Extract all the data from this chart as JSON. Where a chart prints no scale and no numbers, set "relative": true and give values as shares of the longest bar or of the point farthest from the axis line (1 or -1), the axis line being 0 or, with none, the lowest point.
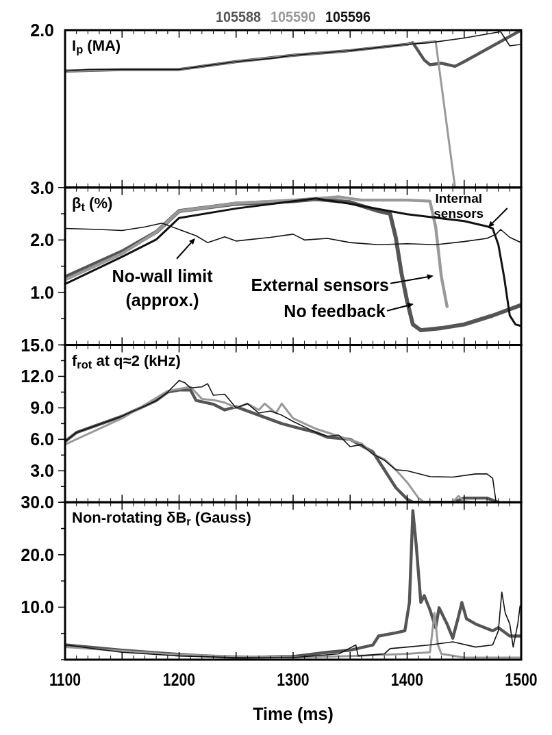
{
  "chart_data": [
    {
      "type": "line",
      "ylabel": "I$_{p}$ (MA)",
      "legend": "top",
      "tick_labels": "y",
      "xlim": [
        1100,
        1500
      ],
      "relative": true,
      "annotations": [
        "2.0"
      ],
      "xticks": [
        {
          "value": 1100,
          "label": null
        },
        {
          "value": 1150,
          "label": null
        },
        {
          "value": 1200,
          "label": null
        },
        {
          "value": 1250,
          "label": null
        },
        {
          "value": 1300,
          "label": null
        },
        {
          "value": 1350,
          "label": null
        },
        {
          "value": 1400,
          "label": null
        },
        {
          "value": 1450,
          "label": null
        },
        {
          "value": 1500,
          "label": null
        }
      ],
      "series": [
        {
          "name": "105588",
          "color": "#555555",
          "x": [
            1100,
            1150,
            1200,
            1250,
            1300,
            1350,
            1400,
            1405,
            1415,
            1420,
            1430,
            1442,
            1450,
            1500
          ],
          "values": [
            0.74,
            0.75,
            0.75,
            0.8,
            0.84,
            0.87,
            0.91,
            0.92,
            0.81,
            0.78,
            0.79,
            0.77,
            0.8,
            1
          ]
        },
        {
          "name": "105590",
          "color": "#999999",
          "x": [
            1100,
            1150,
            1200,
            1250,
            1300,
            1350,
            1400,
            1425,
            1442
          ],
          "values": [
            0.74,
            0.75,
            0.75,
            0.8,
            0.84,
            0.87,
            0.91,
            0.93,
            0
          ]
        },
        {
          "name": "105596",
          "color": "#111111",
          "x": [
            1100,
            1120,
            1140,
            1160,
            1180,
            1200,
            1220,
            1250,
            1280,
            1300,
            1350,
            1400,
            1420,
            1450,
            1482,
            1490,
            1500
          ],
          "values": [
            0.74,
            0.75,
            0.75,
            0.75,
            0.75,
            0.75,
            0.77,
            0.8,
            0.82,
            0.84,
            0.87,
            0.91,
            0.92,
            0.95,
            0.99,
            0.9,
            0.91
          ]
        }
      ]
    },
    {
      "type": "line",
      "ylabel": "β$_{t}$ (%)",
      "tick_labels": "y",
      "xlim": [
        1100,
        1500
      ],
      "ylim": [
        0,
        3
      ],
      "xticks": [
        {
          "value": 1100,
          "label": null
        },
        {
          "value": 1150,
          "label": null
        },
        {
          "value": 1200,
          "label": null
        },
        {
          "value": 1250,
          "label": null
        },
        {
          "value": 1300,
          "label": null
        },
        {
          "value": 1350,
          "label": null
        },
        {
          "value": 1400,
          "label": null
        },
        {
          "value": 1450,
          "label": null
        },
        {
          "value": 1500,
          "label": null
        }
      ],
      "yticks": [
        {
          "value": 0,
          "label": null
        },
        {
          "value": 0.5,
          "label": null
        },
        {
          "value": 1,
          "label": "1.0"
        },
        {
          "value": 1.5,
          "label": null
        },
        {
          "value": 2,
          "label": "2.0"
        },
        {
          "value": 2.5,
          "label": null
        },
        {
          "value": 3,
          "label": "3.0"
        }
      ],
      "annotations": [
        "No-wall limit\n(approx.)",
        {
          "text": "Internal\nsensors",
          "x": 1471,
          "y": 2.24
        },
        "External sensors",
        "No feedback"
      ],
      "series": [
        {
          "color": "#555555",
          "x": [
            1100,
            1150,
            1180,
            1200,
            1250,
            1300,
            1320,
            1350,
            1375,
            1385,
            1390,
            1395,
            1400,
            1405,
            1412,
            1430,
            1450,
            1475,
            1500
          ],
          "values": [
            1.29,
            1.78,
            2.15,
            2.55,
            2.69,
            2.74,
            2.78,
            2.72,
            2.55,
            2.5,
            2.05,
            1.37,
            0.83,
            0.39,
            0.28,
            0.32,
            0.39,
            0.56,
            0.76
          ]
        },
        {
          "color": "#999999",
          "x": [
            1100,
            1150,
            1180,
            1200,
            1250,
            1300,
            1340,
            1360,
            1400,
            1420,
            1425,
            1430,
            1435
          ],
          "values": [
            1.24,
            1.74,
            2.15,
            2.55,
            2.7,
            2.76,
            2.82,
            2.76,
            2.76,
            2.74,
            2.25,
            1.3,
            0.73
          ]
        },
        {
          "color": "#111111",
          "x": [
            1100,
            1150,
            1180,
            1200,
            1250,
            1300,
            1320,
            1350,
            1380,
            1400,
            1420,
            1450,
            1470,
            1475,
            1480,
            1485,
            1490,
            1495,
            1500
          ],
          "values": [
            1.16,
            1.68,
            2.01,
            2.42,
            2.6,
            2.74,
            2.79,
            2.69,
            2.57,
            2.49,
            2.44,
            2.36,
            2.26,
            2.22,
            1.91,
            1.3,
            0.56,
            0.39,
            0.36
          ]
        },
        {
          "color": "#111111",
          "x": [
            1100,
            1130,
            1150,
            1170,
            1185,
            1200,
            1215,
            1225,
            1240,
            1250,
            1280,
            1300,
            1310,
            1330,
            1350,
            1375,
            1400,
            1425,
            1450,
            1470,
            1478,
            1482,
            1490,
            1500
          ],
          "values": [
            2.22,
            2.2,
            2.18,
            2.25,
            2.32,
            2.2,
            2.08,
            1.95,
            2.06,
            1.98,
            2.05,
            2.11,
            2.0,
            2.03,
            1.95,
            1.91,
            1.93,
            1.91,
            1.97,
            2.03,
            2.11,
            2.2,
            2.05,
            1.95
          ]
        }
      ]
    },
    {
      "type": "line",
      "ylabel": "f$_{rot}$ at q≈2 (kHz)",
      "tick_labels": "y",
      "xlim": [
        1100,
        1500
      ],
      "ylim": [
        0,
        15
      ],
      "xticks": [
        {
          "value": 1100,
          "label": null
        },
        {
          "value": 1150,
          "label": null
        },
        {
          "value": 1200,
          "label": null
        },
        {
          "value": 1250,
          "label": null
        },
        {
          "value": 1300,
          "label": null
        },
        {
          "value": 1350,
          "label": null
        },
        {
          "value": 1400,
          "label": null
        },
        {
          "value": 1450,
          "label": null
        },
        {
          "value": 1500,
          "label": null
        }
      ],
      "yticks": [
        {
          "value": 0,
          "label": null
        },
        {
          "value": 1.5,
          "label": null
        },
        {
          "value": 3,
          "label": "3.0"
        },
        {
          "value": 4.5,
          "label": null
        },
        {
          "value": 6,
          "label": "6.0"
        },
        {
          "value": 7.5,
          "label": null
        },
        {
          "value": 9,
          "label": "9.0"
        },
        {
          "value": 10.5,
          "label": null
        },
        {
          "value": 12,
          "label": "12.0"
        },
        {
          "value": 13.5,
          "label": null
        },
        {
          "value": 15,
          "label": "15.0"
        }
      ],
      "series": [
        {
          "color": "#555555",
          "x": [
            1100,
            1110,
            1150,
            1180,
            1190,
            1200,
            1210,
            1215,
            1230,
            1240,
            1250,
            1270,
            1290,
            1300,
            1320,
            1330,
            1350,
            1370,
            1380,
            1390,
            1400,
            1405,
            1440,
            1450,
            1470,
            1480
          ],
          "values": [
            5.8,
            6.65,
            8.2,
            9.7,
            10.5,
            10.7,
            10.7,
            9.7,
            9.35,
            8.8,
            9.1,
            8.3,
            7.5,
            7.2,
            6.65,
            6.2,
            6.0,
            4.8,
            3.1,
            1.4,
            0.3,
            0,
            0,
            0.4,
            0.4,
            0
          ]
        },
        {
          "color": "#999999",
          "x": [
            1100,
            1150,
            1190,
            1200,
            1210,
            1220,
            1230,
            1240,
            1250,
            1260,
            1270,
            1275,
            1285,
            1290,
            1300,
            1320,
            1340,
            1360,
            1370,
            1380,
            1390,
            1400,
            1410,
            1415,
            1440,
            1445,
            1450,
            1460
          ],
          "values": [
            5.5,
            8.0,
            10.6,
            10.8,
            11.0,
            9.85,
            9.75,
            9.5,
            9.0,
            9.4,
            8.8,
            9.4,
            8.5,
            9.4,
            8.0,
            7.0,
            6.3,
            5.6,
            4.6,
            4.1,
            3.1,
            1.9,
            0.4,
            0,
            0,
            0.6,
            0.1,
            0
          ]
        },
        {
          "color": "#111111",
          "x": [
            1100,
            1110,
            1150,
            1180,
            1190,
            1200,
            1205,
            1210,
            1220,
            1225,
            1230,
            1240,
            1250,
            1260,
            1270,
            1280,
            1290,
            1300,
            1320,
            1330,
            1340,
            1350,
            1360,
            1370,
            1380,
            1390,
            1400,
            1420,
            1440,
            1460,
            1470,
            1475,
            1478
          ],
          "values": [
            5.8,
            6.65,
            8.2,
            9.7,
            10.5,
            11.6,
            11.4,
            10.9,
            11.0,
            11.3,
            10.2,
            10.3,
            9.0,
            9.4,
            8.5,
            8.7,
            8.3,
            7.7,
            6.65,
            6.3,
            6.4,
            5.3,
            5.5,
            4.6,
            4.0,
            3.1,
            3.0,
            2.45,
            2.4,
            2.7,
            2.7,
            2.3,
            0
          ]
        }
      ]
    },
    {
      "type": "line",
      "ylabel": "Non-rotating δB$_{r}$ (Gauss)",
      "xlabel": "Time (ms)",
      "xlim": [
        1100,
        1500
      ],
      "ylim": [
        0,
        30
      ],
      "xticks": [
        {
          "value": 1100,
          "label": "1100"
        },
        {
          "value": 1150,
          "label": null
        },
        {
          "value": 1200,
          "label": "1200"
        },
        {
          "value": 1250,
          "label": null
        },
        {
          "value": 1300,
          "label": "1300"
        },
        {
          "value": 1350,
          "label": null
        },
        {
          "value": 1400,
          "label": "1400"
        },
        {
          "value": 1450,
          "label": null
        },
        {
          "value": 1500,
          "label": "1500"
        }
      ],
      "yticks": [
        {
          "value": 0,
          "label": null
        },
        {
          "value": 5,
          "label": null
        },
        {
          "value": 10,
          "label": "10.0"
        },
        {
          "value": 15,
          "label": null
        },
        {
          "value": 20,
          "label": "20.0"
        },
        {
          "value": 25,
          "label": null
        },
        {
          "value": 30,
          "label": "30.0"
        }
      ],
      "series": [
        {
          "color": "#555555",
          "x": [
            1100,
            1150,
            1200,
            1250,
            1300,
            1330,
            1350,
            1370,
            1375,
            1390,
            1398,
            1402,
            1405,
            1408,
            1412,
            1415,
            1420,
            1425,
            1428,
            1435,
            1440,
            1445,
            1448,
            1452,
            1460,
            1475,
            1480,
            1490,
            1500
          ],
          "values": [
            2.8,
            1.8,
            1.0,
            0.4,
            0.6,
            1.4,
            1.8,
            2.8,
            4.5,
            5.1,
            5.5,
            10.9,
            28.4,
            21.7,
            10.9,
            12.2,
            9.5,
            6.1,
            9.9,
            6.8,
            4.1,
            8.2,
            10.9,
            7.8,
            6.8,
            5.5,
            6.1,
            4.5,
            4.5
          ]
        },
        {
          "color": "#999999",
          "x": [
            1100,
            1200,
            1300,
            1350,
            1400,
            1420,
            1424,
            1427,
            1430,
            1450,
            1500
          ],
          "values": [
            2.4,
            0.9,
            0.4,
            0.7,
            1.1,
            1.4,
            8.9,
            2.8,
            1.1,
            0.4,
            0.4
          ]
        },
        {
          "color": "#111111",
          "x": [
            1100,
            1150,
            1200,
            1250,
            1300,
            1340,
            1355,
            1357,
            1380,
            1385,
            1400,
            1420,
            1440,
            1460,
            1475,
            1480,
            1483,
            1486,
            1490,
            1493,
            1497,
            1499
          ],
          "values": [
            2.8,
            1.4,
            0.7,
            0.4,
            0.4,
            1.1,
            2.8,
            0.7,
            1.1,
            2.1,
            2.4,
            2.8,
            3.4,
            2.4,
            2.8,
            5.5,
            12.9,
            8.9,
            6.8,
            2.4,
            6.8,
            10.2
          ]
        }
      ]
    }
  ]
}
